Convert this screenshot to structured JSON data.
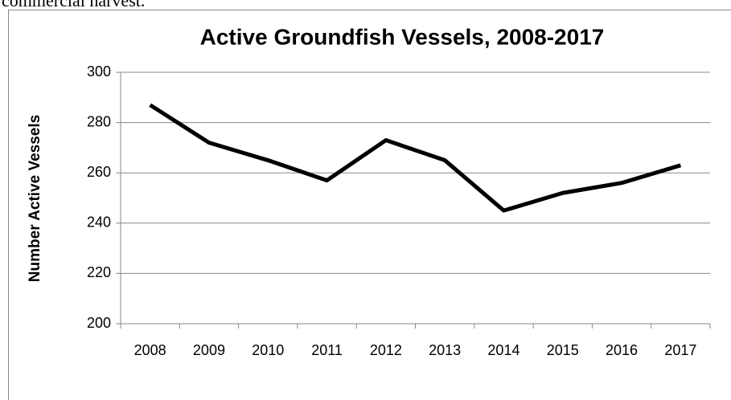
{
  "context_text": "commercial harvest.",
  "chart_data": {
    "type": "line",
    "title": "Active Groundfish Vessels, 2008-2017",
    "y_label": "Number Active Vessels",
    "categories": [
      "2008",
      "2009",
      "2010",
      "2011",
      "2012",
      "2013",
      "2014",
      "2015",
      "2016",
      "2017"
    ],
    "values": [
      287,
      272,
      265,
      257,
      273,
      265,
      245,
      252,
      256,
      263
    ],
    "color": "#000000",
    "ylim": [
      200,
      300
    ],
    "yticks": [
      200,
      220,
      240,
      260,
      280,
      300
    ],
    "grid": true
  }
}
